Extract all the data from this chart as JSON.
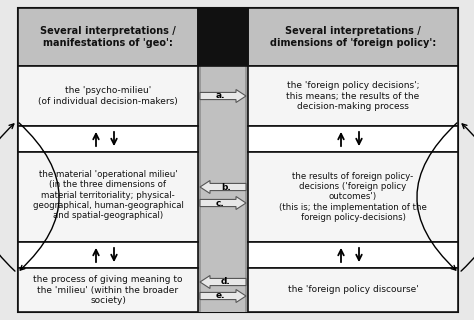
{
  "bg_color": "#e8e8e8",
  "header_bg": "#c8c8c8",
  "cell_bg": "#f2f2f2",
  "middle_dark": "#333333",
  "middle_light": "#b0b0b0",
  "arrow_fill": "#e0e0e0",
  "border_color": "#111111",
  "text_color": "#111111",
  "header_left": "Several interpretations /\nmanifestations of 'geo':",
  "header_right": "Several interpretations /\ndimensions of 'foreign policy':",
  "cell_left_1": "the 'psycho-milieu'\n(of individual decision-makers)",
  "cell_left_2": "the material 'operational milieu'\n(in the three dimensions of\nmaterial territoriality; physical-\ngeographical, human-geographical\nand spatial-geographical)",
  "cell_left_3": "the process of giving meaning to\nthe 'milieu' (within the broader\nsociety)",
  "cell_right_1": "the 'foreign policy decisions';\nthis means; the results of the\ndecision-making process",
  "cell_right_2": "the results of foreign policy-\ndecisions ('foreign policy\noutcomes')\n(this is; the implementation of the\nforeign policy-decisions)",
  "cell_right_3": "the 'foreign policy discourse'",
  "arrow_labels": [
    "a.",
    "b.",
    "c.",
    "d.",
    "e."
  ],
  "fig_width": 4.74,
  "fig_height": 3.2,
  "dpi": 100
}
